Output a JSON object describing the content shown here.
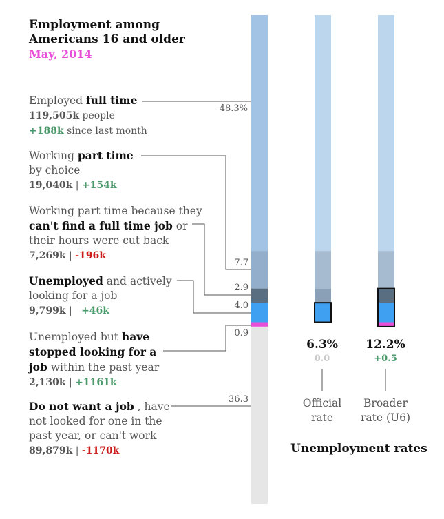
{
  "title_line1": "Employment among",
  "title_line2": "Americans 16 and older",
  "subtitle": "May, 2014",
  "categories": [
    {
      "pre": "Employed ",
      "bold": "full time",
      "post": "",
      "count": "119,505k",
      "count_suffix": " people",
      "change": "+188k",
      "change_suffix": " since last month",
      "pct_label": "48.3%"
    },
    {
      "pre": "Working ",
      "bold": "part time",
      "post": "",
      "line2": "by choice",
      "count": "19,040k",
      "change": "+154k",
      "pct_label": "7.7"
    },
    {
      "pre": "Working part time because they",
      "bold": "can't find a full time job",
      "post": " or",
      "line3": "their hours were cut back",
      "count": "7,269k",
      "change": "-196k",
      "pct_label": "2.9"
    },
    {
      "pre": "",
      "bold": "Unemployed",
      "post": "  and actively",
      "line2": "looking for a job",
      "count": "9,799k",
      "change": "+46k",
      "pct_label": "4.0"
    },
    {
      "pre": "Unemployed but ",
      "bold": "have",
      "bold2": "stopped looking for a",
      "bold3": "job",
      "post": " within the past year",
      "count": "2,130k",
      "change": "+1161k",
      "pct_label": "0.9"
    },
    {
      "pre": "",
      "bold": "Do not want a job",
      "post": " , have",
      "line2": "not looked for one in the",
      "line3": "past year, or can't work",
      "count": "89,879k",
      "change": "-1170k",
      "pct_label": "36.3"
    }
  ],
  "rates": [
    {
      "value": "6.3%",
      "change": "0.0",
      "name_l1": "Official",
      "name_l2": "rate",
      "change_color": "#c8c8c8"
    },
    {
      "value": "12.2%",
      "change": "+0.5",
      "name_l1": "Broader",
      "name_l2": "rate (U6)",
      "change_color": "#4a9a6b"
    }
  ],
  "rates_title": "Unemployment rates",
  "colors": {
    "full_time": "#a3c3e4",
    "part_time_choice": "#92aeca",
    "part_time_econ": "#5a6e82",
    "unemployed": "#3fa0f2",
    "marginal": "#e84fd8",
    "not_in_lf": "#e6e6e6",
    "faded_full": "#bcd6ee",
    "faded_part": "#a7bbd0",
    "positive": "#4a9a6b",
    "negative": "#cc1b1b",
    "accent": "#e84fd8"
  },
  "chart_data": {
    "type": "bar",
    "title": "Employment among Americans 16 and older",
    "subtitle": "May, 2014",
    "categories": [
      "Employed full time",
      "Working part time by choice",
      "Working part time because they can't find a full time job or their hours were cut back",
      "Unemployed and actively looking for a job",
      "Unemployed but have stopped looking for a job within the past year",
      "Do not want a job, have not looked for one in the past year, or can't work"
    ],
    "values": [
      48.3,
      7.7,
      2.9,
      4.0,
      0.9,
      36.3
    ],
    "counts_thousands": [
      119505,
      19040,
      7269,
      9799,
      2130,
      89879
    ],
    "changes_thousands": [
      188,
      154,
      -196,
      46,
      1161,
      -1170
    ],
    "stacked": true,
    "rates": [
      {
        "name": "Official rate",
        "value": 6.3,
        "change": 0.0
      },
      {
        "name": "Broader rate (U6)",
        "value": 12.2,
        "change": 0.5
      }
    ]
  }
}
